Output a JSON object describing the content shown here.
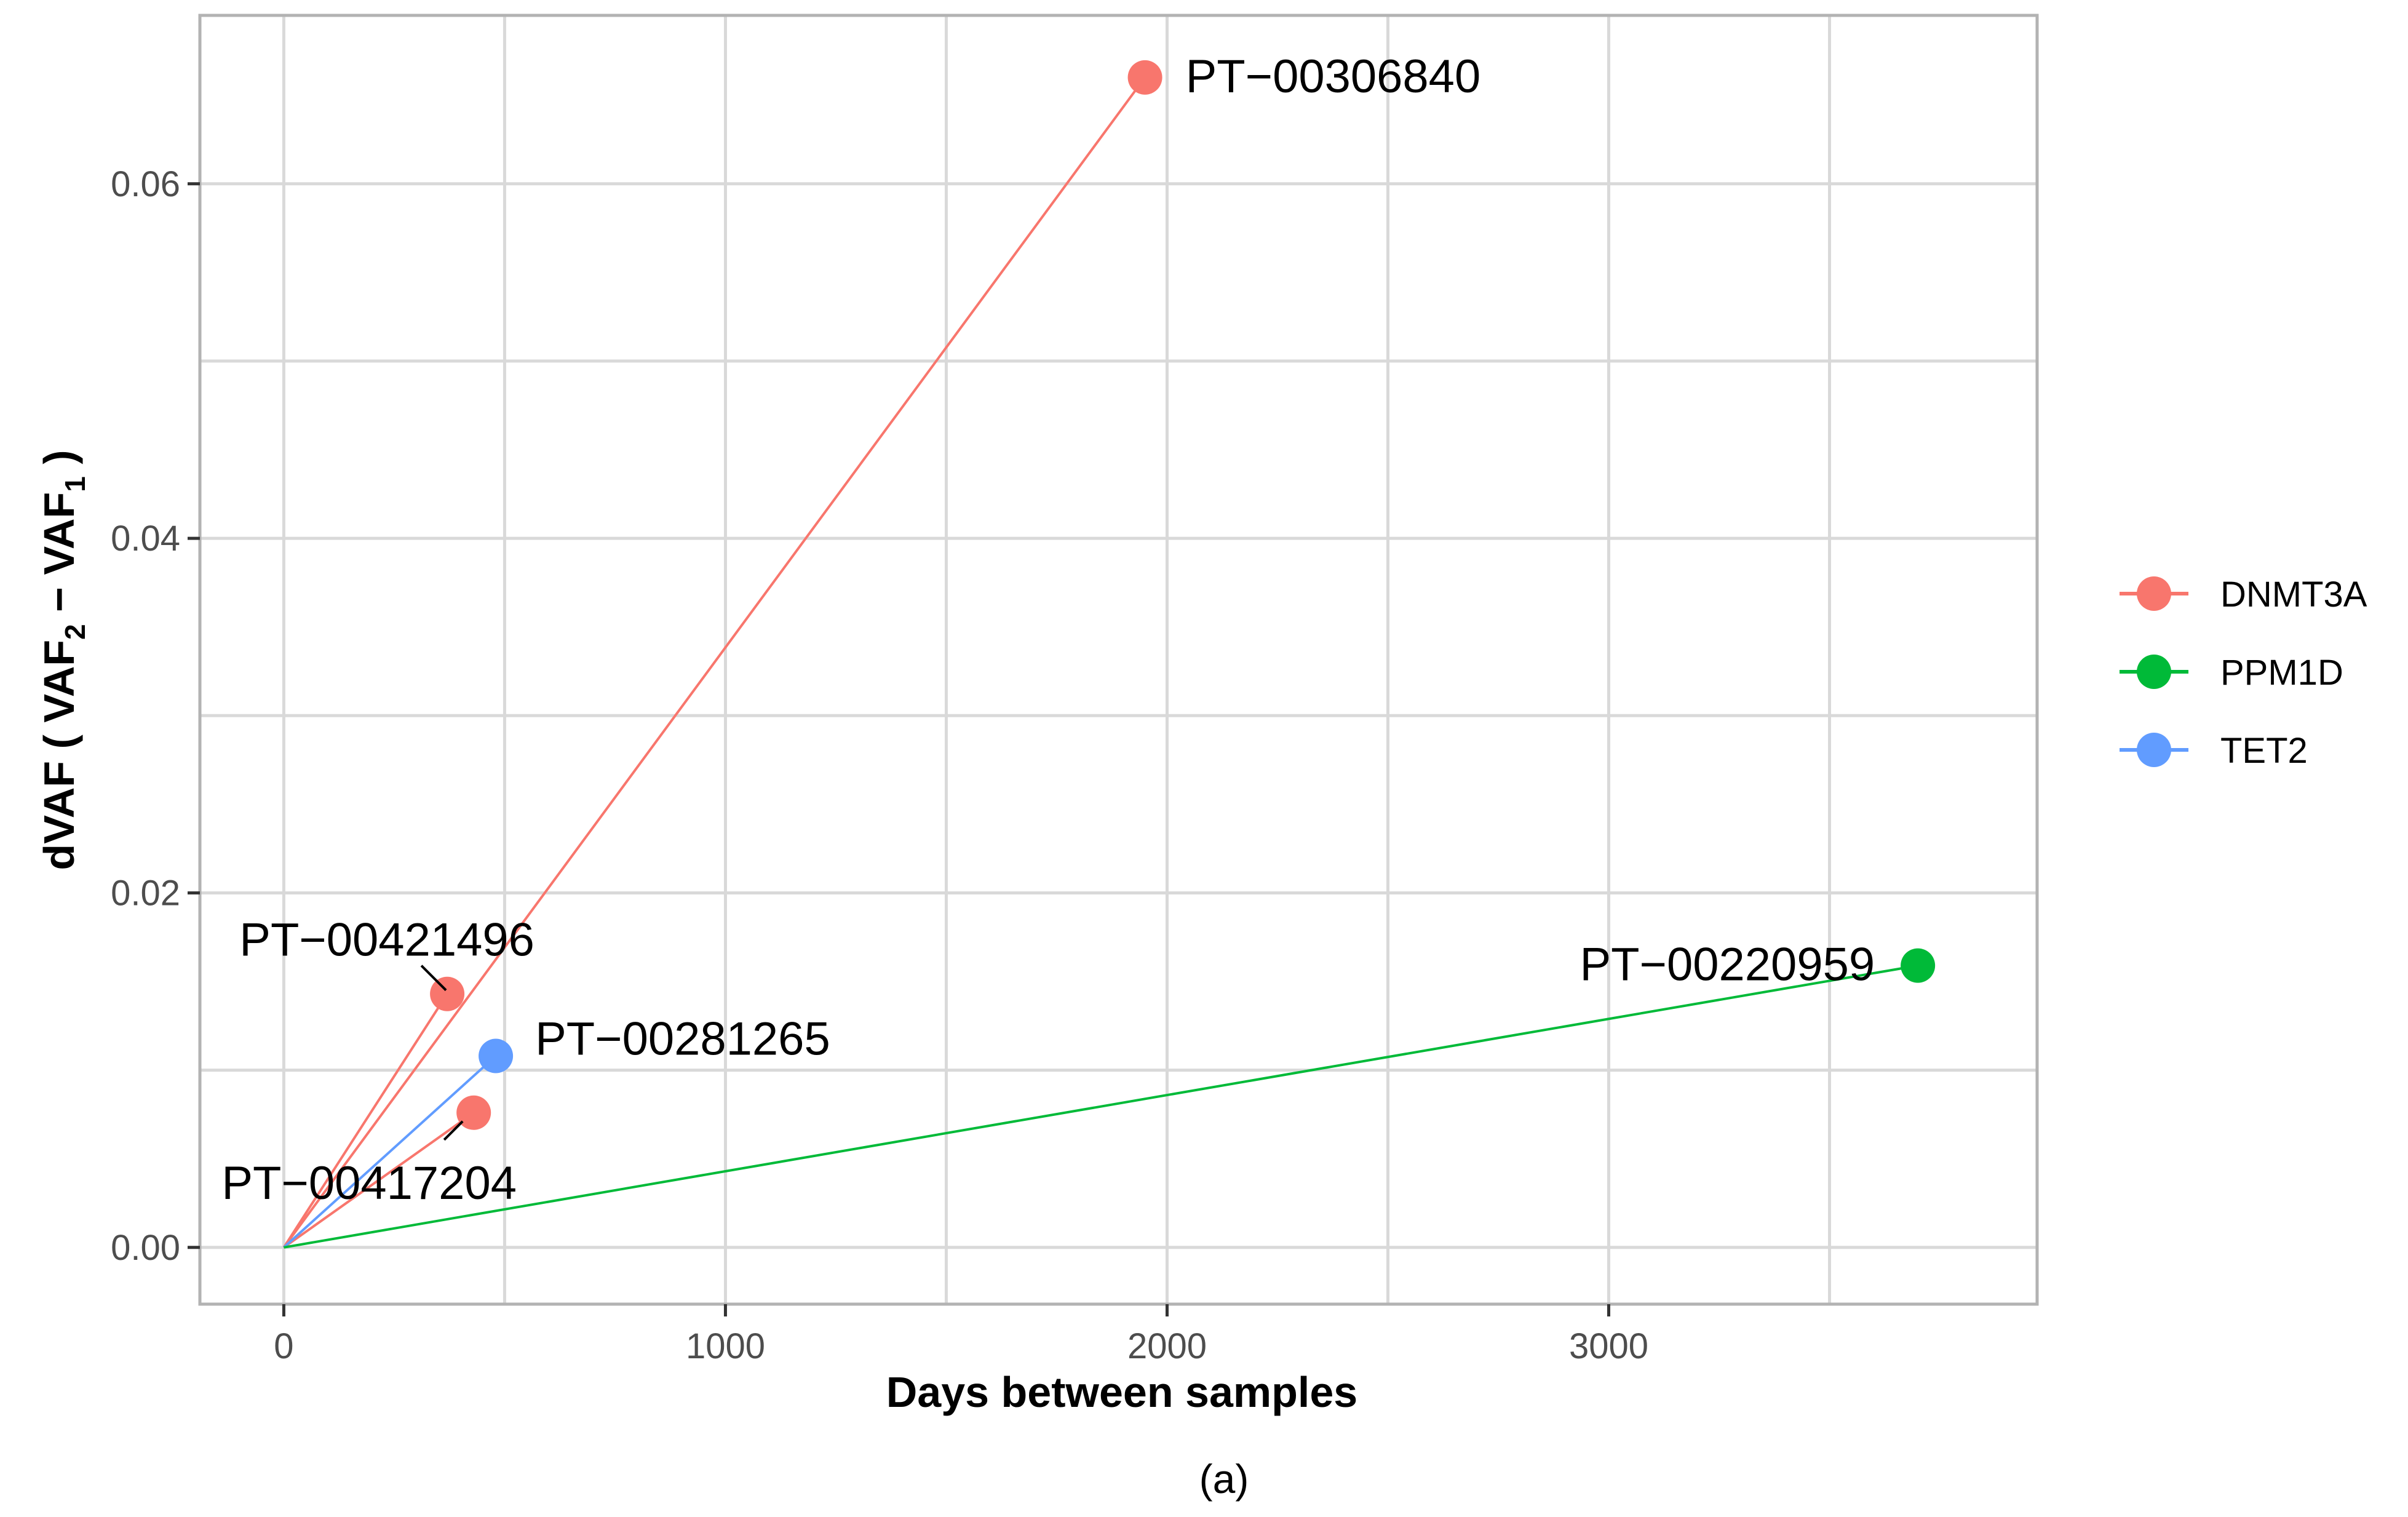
{
  "chart_data": {
    "type": "scatter",
    "xlabel": "Days between samples",
    "ylabel": {
      "prefix": "dVAF ( VAF",
      "sub2": "2",
      "mid": " − VAF",
      "sub1": "1",
      "suffix": " )"
    },
    "xlim": [
      -190,
      3970
    ],
    "ylim": [
      -0.0032,
      0.0695
    ],
    "x_ticks": [
      0,
      1000,
      2000,
      3000
    ],
    "x_tick_labels": [
      "0",
      "1000",
      "2000",
      "3000"
    ],
    "y_ticks": [
      0.0,
      0.02,
      0.04,
      0.06
    ],
    "y_tick_labels": [
      "0.00",
      "0.02",
      "0.04",
      "0.06"
    ],
    "grid": true,
    "legend_position": "right",
    "series": [
      {
        "name": "DNMT3A",
        "color": "#F8766D"
      },
      {
        "name": "PPM1D",
        "color": "#00BA38"
      },
      {
        "name": "TET2",
        "color": "#619CFF"
      }
    ],
    "points": [
      {
        "label": "PT−00306840",
        "gene": "DNMT3A",
        "x": 1950,
        "y": 0.066
      },
      {
        "label": "PT−00421496",
        "gene": "DNMT3A",
        "x": 370,
        "y": 0.0143
      },
      {
        "label": "PT−00417204",
        "gene": "DNMT3A",
        "x": 430,
        "y": 0.0076
      },
      {
        "label": "PT−00281265",
        "gene": "TET2",
        "x": 480,
        "y": 0.0108
      },
      {
        "label": "PT−00220959",
        "gene": "PPM1D",
        "x": 3700,
        "y": 0.0159
      }
    ],
    "origin": [
      0,
      0.0
    ]
  },
  "caption": "(a)"
}
